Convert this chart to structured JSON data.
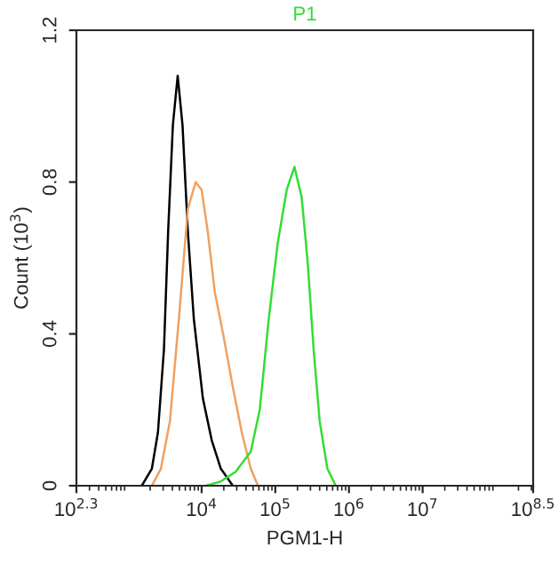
{
  "chart_data": {
    "type": "line",
    "title": "P1",
    "xlabel": "PGM1-H",
    "ylabel": "Count (10$^{3}$)",
    "log": "x",
    "xlim": [
      199.526,
      316227766
    ],
    "xticks": [
      {
        "value": 199.526,
        "label": "10$^{2.3}$"
      },
      {
        "value": 10000,
        "label": "10$^{4}$"
      },
      {
        "value": 100000,
        "label": "10$^{5}$"
      },
      {
        "value": 1000000,
        "label": "10$^{6}$"
      },
      {
        "value": 10000000,
        "label": "10$^{7}$"
      },
      {
        "value": 316227766,
        "label": "10$^{8.5}$"
      }
    ],
    "ylim": [
      0,
      1.2
    ],
    "yticks": [
      0,
      0.4,
      0.8,
      1.2
    ],
    "grid": false,
    "legend": false,
    "series": [
      {
        "color": "#000000",
        "x": [
          1540,
          2110,
          2550,
          3080,
          3510,
          4070,
          4730,
          5500,
          6500,
          7830,
          10400,
          13700,
          18200,
          26500
        ],
        "values": [
          0,
          0.045,
          0.14,
          0.36,
          0.67,
          0.95,
          1.08,
          0.95,
          0.67,
          0.44,
          0.23,
          0.12,
          0.045,
          0
        ]
      },
      {
        "color": "#f0a060",
        "x": [
          2110,
          2800,
          3710,
          4910,
          6500,
          8300,
          10000,
          12100,
          15100,
          20000,
          26500,
          35100,
          46500,
          58100
        ],
        "values": [
          0,
          0.045,
          0.17,
          0.44,
          0.73,
          0.8,
          0.78,
          0.67,
          0.51,
          0.39,
          0.26,
          0.14,
          0.045,
          0
        ]
      },
      {
        "color": "#33dd33",
        "x": [
          11400,
          18200,
          29000,
          46500,
          61500,
          81500,
          108000,
          143000,
          182000,
          228000,
          275000,
          331000,
          400000,
          509000,
          662000
        ],
        "values": [
          0,
          0.011,
          0.037,
          0.09,
          0.2,
          0.44,
          0.64,
          0.78,
          0.84,
          0.76,
          0.59,
          0.36,
          0.17,
          0.045,
          0
        ]
      }
    ]
  }
}
